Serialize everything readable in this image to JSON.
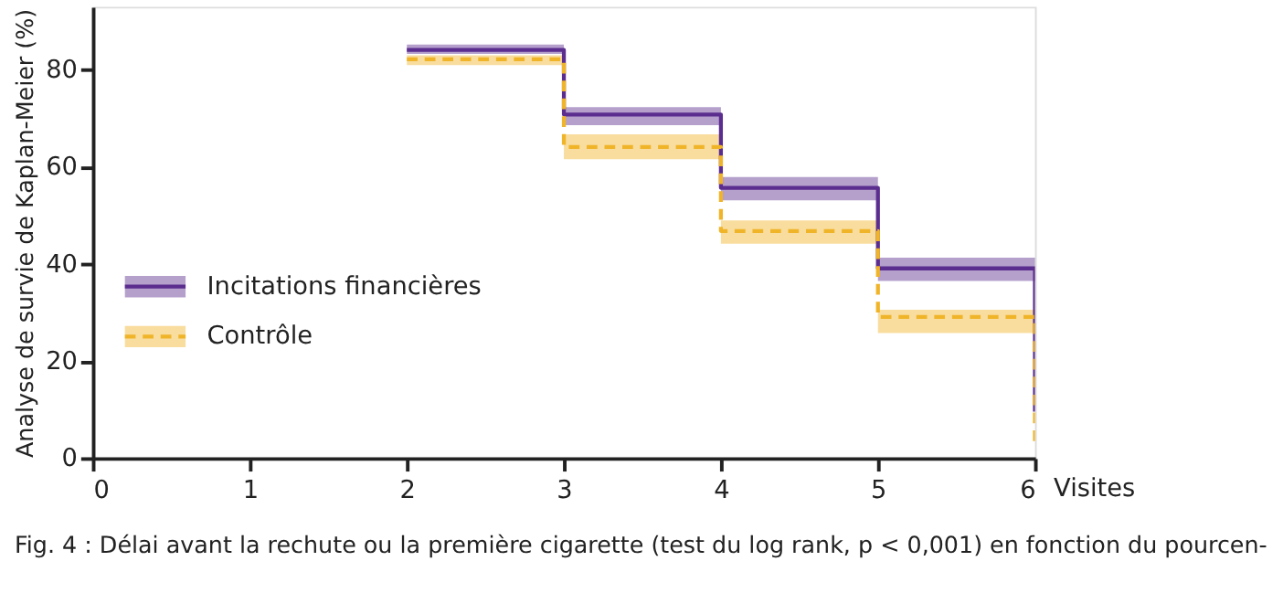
{
  "chart_data": {
    "type": "step",
    "ylabel": "Analyse de survie de Kaplan-Meier (%)",
    "xlabel": "Visites",
    "annotations": [
      "Fig. 4 : Délai avant la rechute ou la première cigarette (test du log rank, p < 0,001) en fonction du pourcen-"
    ],
    "x": [
      2,
      3,
      4,
      5,
      6
    ],
    "series": [
      {
        "name": "Incitations financières",
        "color": "#5b2d8e",
        "line_style": "solid",
        "values": [
          84.1,
          70.8,
          55.7,
          39.1,
          9.6
        ],
        "lower": [
          83.3,
          68.6,
          53.1,
          36.5,
          36.5
        ],
        "upper": [
          85.2,
          72.3,
          57.9,
          41.3,
          41.3
        ]
      },
      {
        "name": "Contrôle",
        "color": "#f0b429",
        "line_style": "dashed",
        "values": [
          82.2,
          64.1,
          46.8,
          29.1,
          2.2
        ],
        "lower": [
          81.0,
          61.6,
          44.2,
          25.8,
          25.8
        ],
        "upper": [
          83.0,
          66.7,
          49.0,
          30.6,
          30.6
        ]
      }
    ],
    "xlim": [
      0,
      6
    ],
    "xticks": [
      0,
      1,
      2,
      3,
      4,
      5,
      6
    ],
    "ylim": [
      0,
      93
    ],
    "yticks": [
      0,
      20,
      40,
      60,
      80
    ],
    "grid": false,
    "legend": "left",
    "marker": "none"
  }
}
